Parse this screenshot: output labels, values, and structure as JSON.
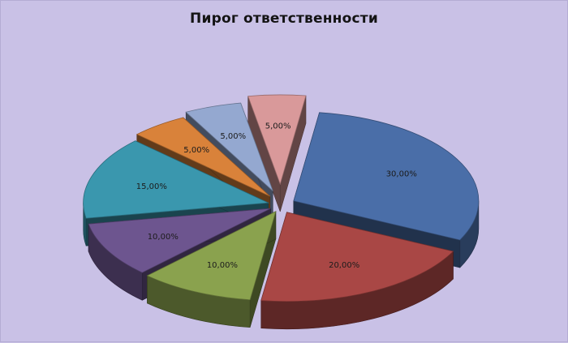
{
  "chart_data": {
    "type": "pie",
    "style": "3d-exploded",
    "title": "Пирог ответственности",
    "legend": "none",
    "slices": [
      {
        "value": 30,
        "label": "30,00%",
        "color": "#4a6ea8"
      },
      {
        "value": 20,
        "label": "20,00%",
        "color": "#a94745"
      },
      {
        "value": 10,
        "label": "10,00%",
        "color": "#8aa24e"
      },
      {
        "value": 10,
        "label": "10,00%",
        "color": "#6d558f"
      },
      {
        "value": 15,
        "label": "15,00%",
        "color": "#3a97ae"
      },
      {
        "value": 5,
        "label": "5,00%",
        "color": "#d9823a"
      },
      {
        "value": 5,
        "label": "5,00%",
        "color": "#94a8d0"
      },
      {
        "value": 5,
        "label": "5,00%",
        "color": "#d9999a"
      }
    ]
  }
}
